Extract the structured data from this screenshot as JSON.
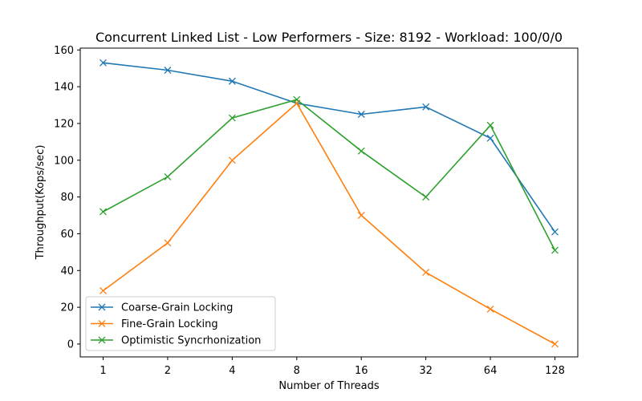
{
  "chart_data": {
    "type": "line",
    "title": "Concurrent Linked List - Low Performers - Size: 8192 - Workload: 100/0/0",
    "xlabel": "Number of Threads",
    "ylabel": "Throughput(Kops/sec)",
    "categories": [
      "1",
      "2",
      "4",
      "8",
      "16",
      "32",
      "64",
      "128"
    ],
    "ylim": [
      -7,
      161
    ],
    "yticks": [
      0,
      20,
      40,
      60,
      80,
      100,
      120,
      140,
      160
    ],
    "grid": false,
    "legend_position": "lower-left",
    "series": [
      {
        "name": "Coarse-Grain Locking",
        "color": "#1f77b4",
        "marker": "x",
        "values": [
          153,
          149,
          143,
          131,
          125,
          129,
          112,
          61
        ]
      },
      {
        "name": "Fine-Grain Locking",
        "color": "#ff7f0e",
        "marker": "x",
        "values": [
          29,
          55,
          100,
          131,
          70,
          39,
          19,
          0
        ]
      },
      {
        "name": "Optimistic Syncrhonization",
        "color": "#2ca02c",
        "marker": "x",
        "values": [
          72,
          91,
          123,
          133,
          105,
          80,
          119,
          51
        ]
      }
    ]
  }
}
